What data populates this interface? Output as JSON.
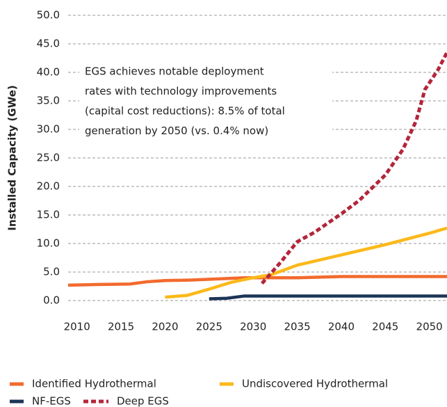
{
  "chart_data": {
    "type": "line",
    "ylabel": "Installed Capacity (GWe)",
    "annotation": [
      "EGS achieves notable deployment",
      "rates with technology improvements",
      "(capital cost reductions): 8.5% of total",
      "generation by 2050 (vs. 0.4% now)"
    ],
    "xlim": [
      2009,
      2052
    ],
    "xticks": [
      2010,
      2015,
      2020,
      2025,
      2030,
      2035,
      2040,
      2045,
      2050
    ],
    "ylim": [
      0,
      50
    ],
    "yticks": [
      {
        "value": 0,
        "label": "0.0"
      },
      {
        "value": 5,
        "label": "5.0"
      },
      {
        "value": 10,
        "label": "10.0"
      },
      {
        "value": 15,
        "label": "15.0"
      },
      {
        "value": 20,
        "label": "20.0"
      },
      {
        "value": 25,
        "label": "25.0"
      },
      {
        "value": 30,
        "label": "30.0"
      },
      {
        "value": 35,
        "label": "35.0"
      },
      {
        "value": 40,
        "label": "40.0"
      },
      {
        "value": 45,
        "label": "45.0"
      },
      {
        "value": 50,
        "label": "50.0"
      }
    ],
    "grid": true,
    "series": [
      {
        "name": "Identified Hydrothermal",
        "color": "#f26a2e",
        "dashed": false,
        "x": [
          2009,
          2012,
          2016,
          2018,
          2020,
          2023,
          2026,
          2029,
          2035,
          2040,
          2052
        ],
        "values": [
          2.7,
          2.8,
          2.9,
          3.3,
          3.5,
          3.6,
          3.8,
          4.0,
          4.0,
          4.2,
          4.2
        ]
      },
      {
        "name": "Undiscovered Hydrothermal",
        "color": "#fbb91a",
        "dashed": false,
        "x": [
          2020,
          2022.5,
          2025,
          2027.5,
          2030,
          2032,
          2035,
          2040,
          2045,
          2050,
          2052
        ],
        "values": [
          0.6,
          0.9,
          2.0,
          3.2,
          4.0,
          4.5,
          6.2,
          8.0,
          9.8,
          11.8,
          12.7
        ]
      },
      {
        "name": "NF-EGS",
        "color": "#1c3557",
        "dashed": false,
        "x": [
          2025,
          2027,
          2029,
          2052
        ],
        "values": [
          0.3,
          0.4,
          0.8,
          0.8
        ]
      },
      {
        "name": "Deep EGS",
        "color": "#b3263a",
        "dashed": true,
        "x": [
          2031,
          2033,
          2035,
          2037,
          2040,
          2042,
          2045,
          2047,
          2048.5,
          2049.5,
          2051,
          2052
        ],
        "values": [
          3.0,
          6.5,
          10.3,
          12.0,
          15.2,
          17.5,
          22.0,
          26.5,
          31.5,
          37.0,
          40.5,
          43.5
        ]
      }
    ]
  }
}
